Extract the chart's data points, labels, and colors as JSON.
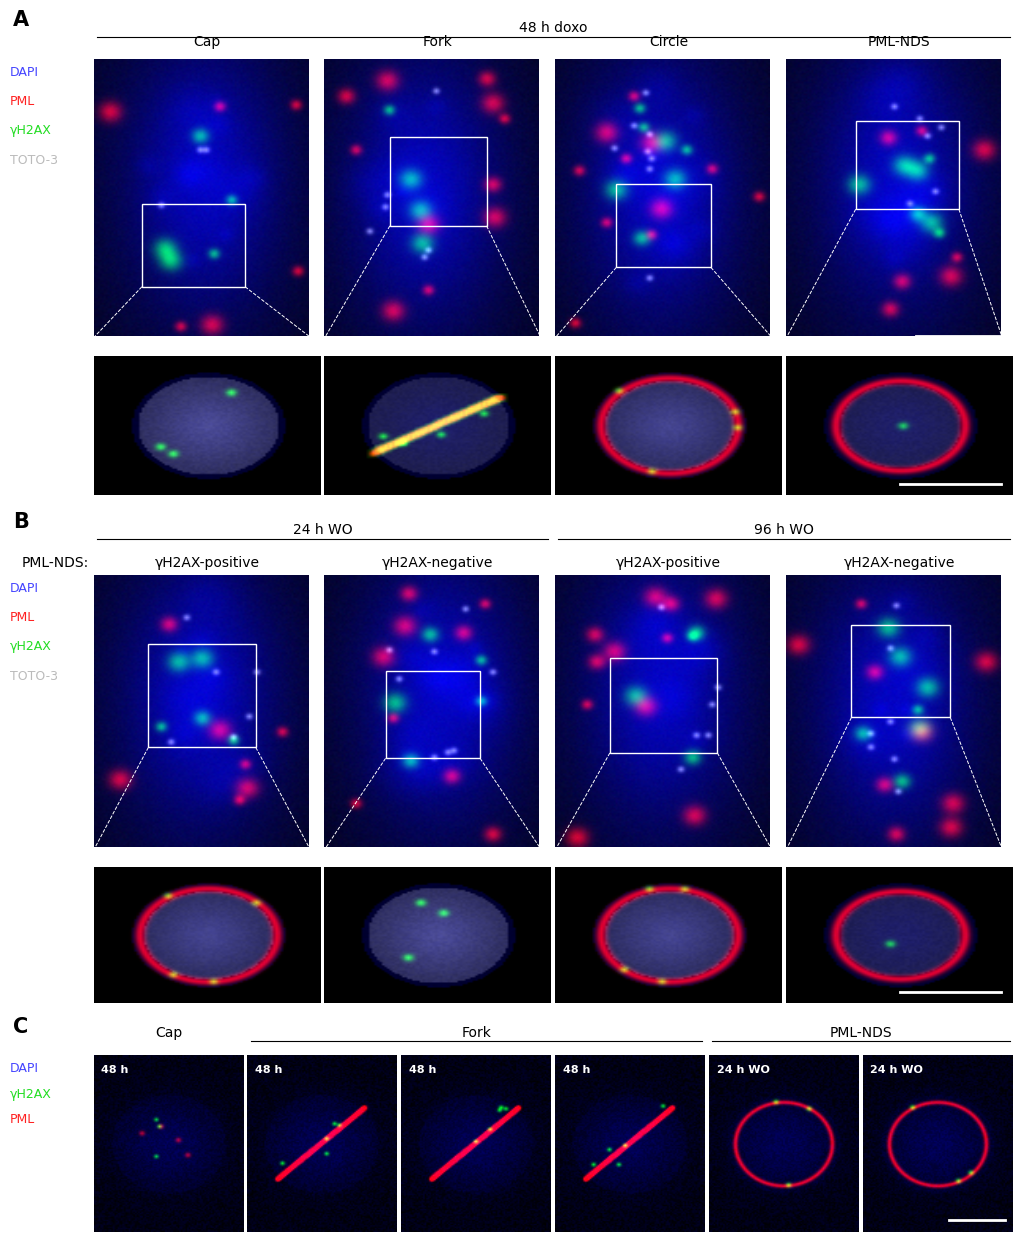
{
  "bg_color": "#ffffff",
  "panel_A": {
    "label": "A",
    "group_label": "48 h doxo",
    "col_labels": [
      "Cap",
      "Fork",
      "Circle",
      "PML-NDS"
    ],
    "legend": [
      "DAPI",
      "PML",
      "γH2AX",
      "TOTO-3"
    ],
    "legend_colors": [
      "#4444ff",
      "#ff2222",
      "#22dd22",
      "#bbbbbb"
    ]
  },
  "panel_B": {
    "label": "B",
    "group_labels": [
      "24 h WO",
      "96 h WO"
    ],
    "row_label": "PML-NDS:",
    "col_labels": [
      "γH2AX-positive",
      "γH2AX-negative",
      "γH2AX-positive",
      "γH2AX-negative"
    ],
    "legend": [
      "DAPI",
      "PML",
      "γH2AX",
      "TOTO-3"
    ],
    "legend_colors": [
      "#4444ff",
      "#ff2222",
      "#22dd22",
      "#bbbbbb"
    ]
  },
  "panel_C": {
    "label": "C",
    "group_labels": [
      "Cap",
      "Fork",
      "PML-NDS"
    ],
    "group_spans": [
      1,
      3,
      2
    ],
    "col_labels": [
      "48 h",
      "48 h",
      "48 h",
      "48 h",
      "24 h WO",
      "24 h WO"
    ],
    "legend": [
      "DAPI",
      "γH2AX",
      "PML"
    ],
    "legend_colors": [
      "#4444ff",
      "#22dd22",
      "#ff2222"
    ]
  },
  "font_size_label": 15,
  "font_size_group": 10,
  "font_size_col": 10,
  "font_size_legend": 9,
  "font_size_inset_label": 8
}
